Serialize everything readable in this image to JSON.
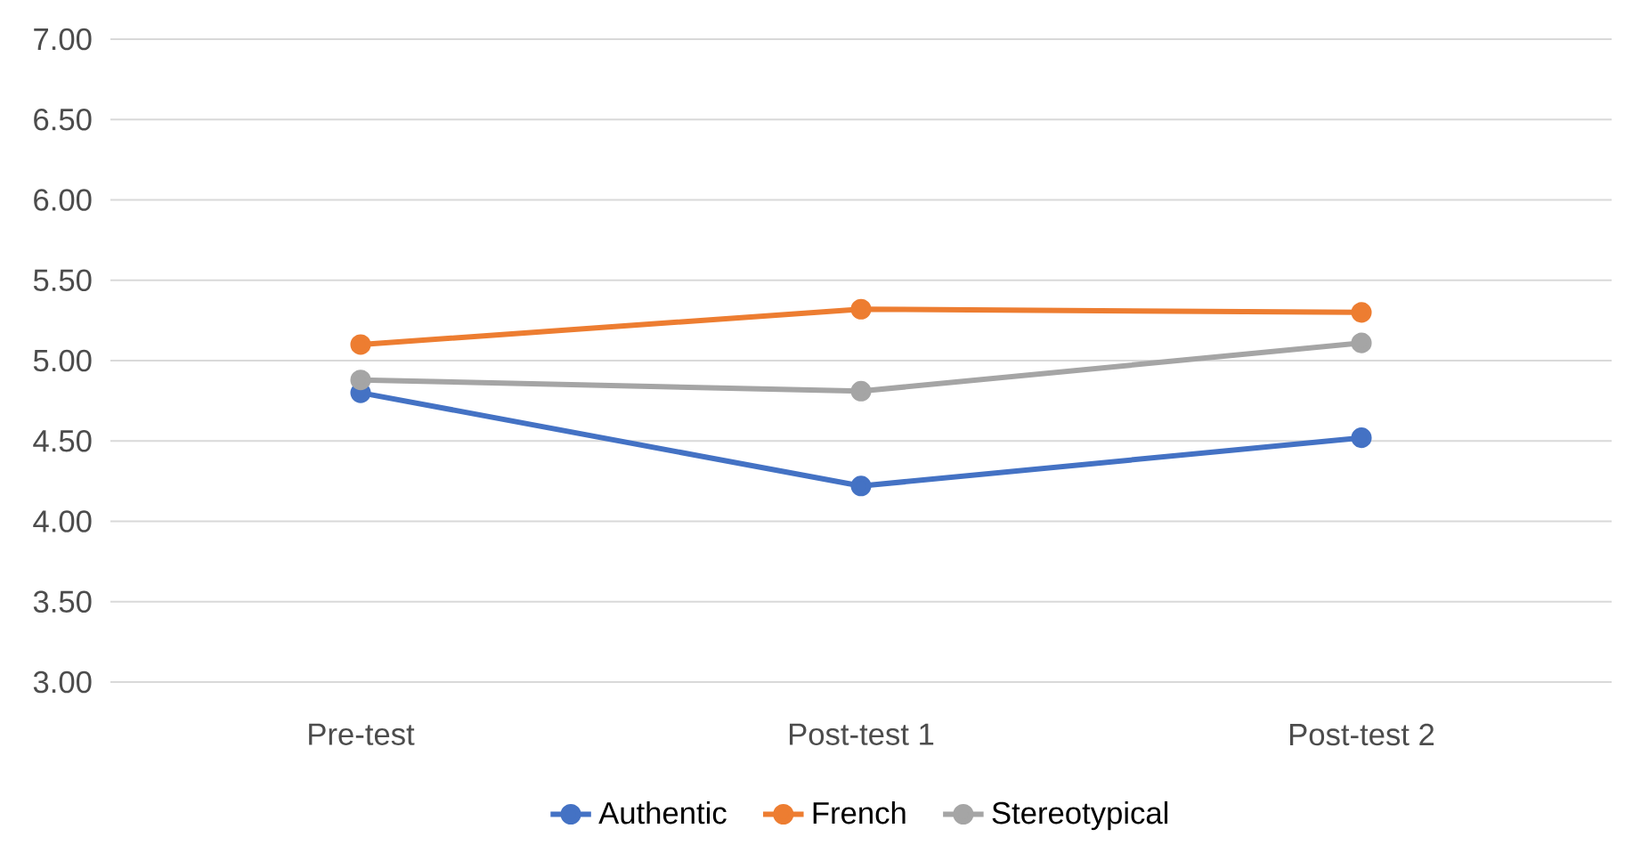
{
  "chart_data": {
    "type": "line",
    "categories": [
      "Pre-test",
      "Post-test 1",
      "Post-test 2"
    ],
    "series": [
      {
        "name": "Authentic",
        "color": "#4472c4",
        "values": [
          4.8,
          4.22,
          4.52
        ]
      },
      {
        "name": "French",
        "color": "#ed7d31",
        "values": [
          5.1,
          5.32,
          5.3
        ]
      },
      {
        "name": "Stereotypical",
        "color": "#a5a5a5",
        "values": [
          4.88,
          4.81,
          5.11
        ]
      }
    ],
    "ylim": [
      3,
      7
    ],
    "yticks": [
      {
        "value": 3,
        "label": "3.00"
      },
      {
        "value": 3.5,
        "label": "3.50"
      },
      {
        "value": 4,
        "label": "4.00"
      },
      {
        "value": 4.5,
        "label": "4.50"
      },
      {
        "value": 5,
        "label": "5.00"
      },
      {
        "value": 5.5,
        "label": "5.50"
      },
      {
        "value": 6,
        "label": "6.00"
      },
      {
        "value": 6.5,
        "label": "6.50"
      },
      {
        "value": 7,
        "label": "7.00"
      }
    ],
    "grid": "y",
    "legend": "bottom",
    "marker": "circle",
    "line_style": "solid"
  }
}
